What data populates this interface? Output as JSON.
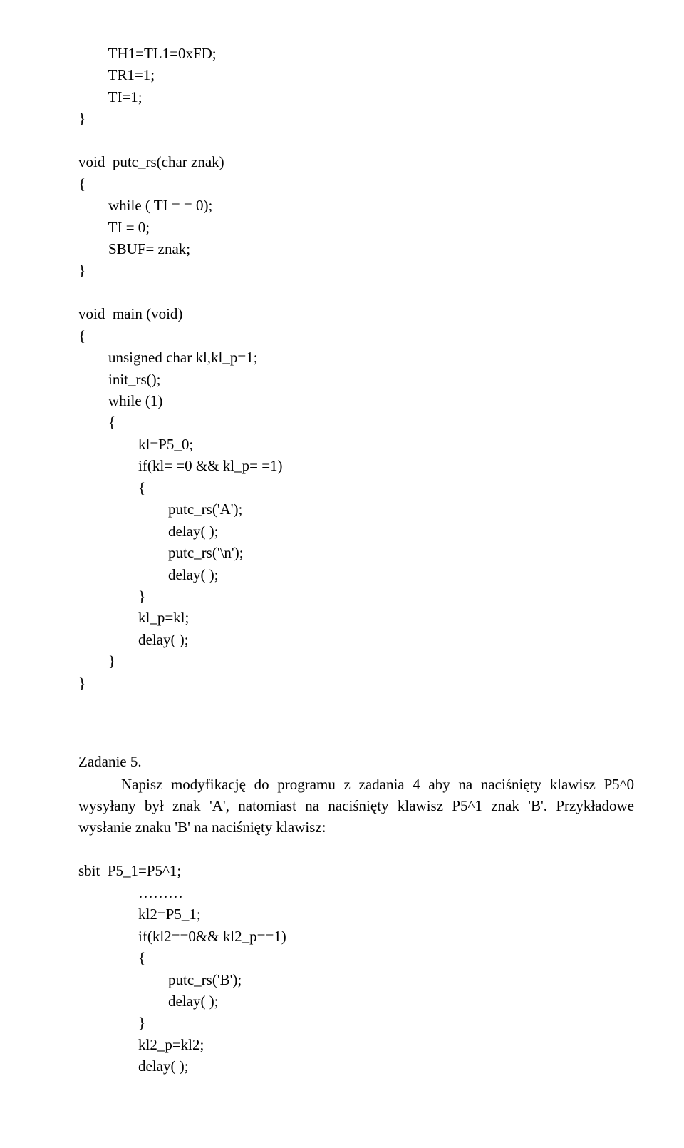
{
  "code1": "        TH1=TL1=0xFD;\n        TR1=1;\n        TI=1;\n}\n\nvoid  putc_rs(char znak)\n{\n        while ( TI = = 0);\n        TI = 0;\n        SBUF= znak;\n}\n\nvoid  main (void)\n{\n        unsigned char kl,kl_p=1;\n        init_rs();\n        while (1)\n        {\n                kl=P5_0;\n                if(kl= =0 && kl_p= =1)\n                {\n                        putc_rs('A');\n                        delay( );\n                        putc_rs('\\n');\n                        delay( );\n                }\n                kl_p=kl;\n                delay( );\n        }\n}",
  "task_title": "Zadanie 5.",
  "task_text": "Napisz modyfikację do programu z zadania 4 aby na naciśnięty klawisz P5^0 wysyłany był znak 'A', natomiast na naciśnięty klawisz P5^1 znak 'B'. Przykładowe wysłanie znaku 'B' na naciśnięty klawisz:",
  "code2": "\nsbit  P5_1=P5^1;\n                ………\n                kl2=P5_1;\n                if(kl2==0&& kl2_p==1)\n                {\n                        putc_rs('B');\n                        delay( );\n                }\n                kl2_p=kl2;\n                delay( );"
}
